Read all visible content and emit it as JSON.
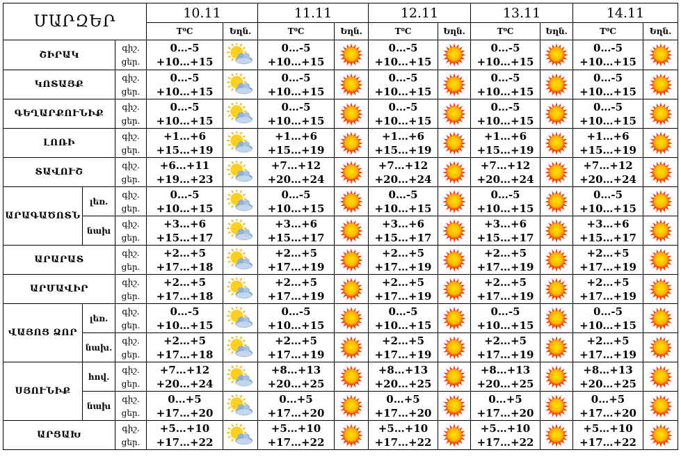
{
  "title": "ՄԱՐԶԵՐ",
  "dates": [
    "10.11",
    "11.11",
    "12.11",
    "13.11",
    "14.11"
  ],
  "sub_headers": {
    "temp": "T⁰C",
    "weather": "Եղն."
  },
  "icons": {
    "partly_cloudy": "sun-behind-cloud-icon",
    "sunny": "sun-icon"
  },
  "colors": {
    "sun_outer": "#ff2a00",
    "sun_inner": "#ffe600",
    "cloud": "#7a9cc4"
  },
  "regions": [
    {
      "name": "ՇԻՐԱԿ",
      "rows": [
        {
          "sub": "",
          "tod": [
            "գիշ.",
            "ցեր."
          ],
          "days": [
            {
              "t": [
                "0…-5",
                "+10…+15"
              ],
              "icon": "partly_cloudy"
            },
            {
              "t": [
                "0…-5",
                "+10…+15"
              ],
              "icon": "sunny"
            },
            {
              "t": [
                "0…-5",
                "+10…+15"
              ],
              "icon": "sunny"
            },
            {
              "t": [
                "0…-5",
                "+10…+15"
              ],
              "icon": "sunny"
            },
            {
              "t": [
                "0…-5",
                "+10…+15"
              ],
              "icon": "sunny"
            }
          ]
        }
      ]
    },
    {
      "name": "ԿՈՏԱՅՔ",
      "rows": [
        {
          "sub": "",
          "tod": [
            "գիշ.",
            "ցեր."
          ],
          "days": [
            {
              "t": [
                "0…-5",
                "+10…+15"
              ],
              "icon": "partly_cloudy"
            },
            {
              "t": [
                "0…-5",
                "+10…+15"
              ],
              "icon": "sunny"
            },
            {
              "t": [
                "0…-5",
                "+10…+15"
              ],
              "icon": "sunny"
            },
            {
              "t": [
                "0…-5",
                "+10…+15"
              ],
              "icon": "sunny"
            },
            {
              "t": [
                "0…-5",
                "+10…+15"
              ],
              "icon": "sunny"
            }
          ]
        }
      ]
    },
    {
      "name": "ԳԵՂԱՐՔՈՒՆԻՔ",
      "rows": [
        {
          "sub": "",
          "tod": [
            "գիշ.",
            "ցեր."
          ],
          "days": [
            {
              "t": [
                "0…-5",
                "+10…+15"
              ],
              "icon": "partly_cloudy"
            },
            {
              "t": [
                "0…-5",
                "+10…+15"
              ],
              "icon": "sunny"
            },
            {
              "t": [
                "0…-5",
                "+10…+15"
              ],
              "icon": "sunny"
            },
            {
              "t": [
                "0…-5",
                "+10…+15"
              ],
              "icon": "sunny"
            },
            {
              "t": [
                "0…-5",
                "+10…+15"
              ],
              "icon": "sunny"
            }
          ]
        }
      ]
    },
    {
      "name": "ԼՈՌԻ",
      "rows": [
        {
          "sub": "",
          "tod": [
            "գիշ.",
            "ցեր."
          ],
          "days": [
            {
              "t": [
                "+1…+6",
                "+15…+19"
              ],
              "icon": "partly_cloudy"
            },
            {
              "t": [
                "+1…+6",
                "+15…+19"
              ],
              "icon": "sunny"
            },
            {
              "t": [
                "+1…+6",
                "+15…+19"
              ],
              "icon": "sunny"
            },
            {
              "t": [
                "+1…+6",
                "+15…+19"
              ],
              "icon": "sunny"
            },
            {
              "t": [
                "+1…+6",
                "+15…+19"
              ],
              "icon": "sunny"
            }
          ]
        }
      ]
    },
    {
      "name": "ՏԱՎՈՒՇ",
      "rows": [
        {
          "sub": "",
          "tod": [
            "գիշ.",
            "ցեր."
          ],
          "days": [
            {
              "t": [
                "+6…+11",
                "+19…+23"
              ],
              "icon": "partly_cloudy"
            },
            {
              "t": [
                "+7…+12",
                "+20…+24"
              ],
              "icon": "sunny"
            },
            {
              "t": [
                "+7…+12",
                "+20…+24"
              ],
              "icon": "sunny"
            },
            {
              "t": [
                "+7…+12",
                "+20…+24"
              ],
              "icon": "sunny"
            },
            {
              "t": [
                "+7…+12",
                "+20…+24"
              ],
              "icon": "sunny"
            }
          ]
        }
      ]
    },
    {
      "name": "ԱՐԱԳԱԾՈՏՆ",
      "rows": [
        {
          "sub": "լեռ.",
          "tod": [
            "գիշ.",
            "ցեր."
          ],
          "days": [
            {
              "t": [
                "0…-5",
                "+10…+15"
              ],
              "icon": "partly_cloudy"
            },
            {
              "t": [
                "0…-5",
                "+10…+15"
              ],
              "icon": "sunny"
            },
            {
              "t": [
                "0…-5",
                "+10…+15"
              ],
              "icon": "sunny"
            },
            {
              "t": [
                "0…-5",
                "+10…+15"
              ],
              "icon": "sunny"
            },
            {
              "t": [
                "0…-5",
                "+10…+15"
              ],
              "icon": "sunny"
            }
          ]
        },
        {
          "sub": "նախ",
          "tod": [
            "գիշ.",
            "ցեր."
          ],
          "days": [
            {
              "t": [
                "+3…+6",
                "+15…+17"
              ],
              "icon": "partly_cloudy"
            },
            {
              "t": [
                "+3…+6",
                "+15…+17"
              ],
              "icon": "sunny"
            },
            {
              "t": [
                "+3…+6",
                "+15…+17"
              ],
              "icon": "sunny"
            },
            {
              "t": [
                "+3…+6",
                "+15…+17"
              ],
              "icon": "sunny"
            },
            {
              "t": [
                "+3…+6",
                "+15…+17"
              ],
              "icon": "sunny"
            }
          ]
        }
      ]
    },
    {
      "name": "ԱՐԱՐԱՏ",
      "rows": [
        {
          "sub": "",
          "tod": [
            "գիշ.",
            "ցեր."
          ],
          "days": [
            {
              "t": [
                "+2…+5",
                "+17…+18"
              ],
              "icon": "partly_cloudy"
            },
            {
              "t": [
                "+2…+5",
                "+17…+19"
              ],
              "icon": "sunny"
            },
            {
              "t": [
                "+2…+5",
                "+17…+19"
              ],
              "icon": "sunny"
            },
            {
              "t": [
                "+2…+5",
                "+17…+19"
              ],
              "icon": "sunny"
            },
            {
              "t": [
                "+2…+5",
                "+17…+19"
              ],
              "icon": "sunny"
            }
          ]
        }
      ]
    },
    {
      "name": "ԱՐՄԱՎԻՐ",
      "rows": [
        {
          "sub": "",
          "tod": [
            "գիշ.",
            "ցեր."
          ],
          "days": [
            {
              "t": [
                "+2…+5",
                "+17…+18"
              ],
              "icon": "partly_cloudy"
            },
            {
              "t": [
                "+2…+5",
                "+17…+19"
              ],
              "icon": "sunny"
            },
            {
              "t": [
                "+2…+5",
                "+17…+19"
              ],
              "icon": "sunny"
            },
            {
              "t": [
                "+2…+5",
                "+17…+19"
              ],
              "icon": "sunny"
            },
            {
              "t": [
                "+2…+5",
                "+17…+19"
              ],
              "icon": "sunny"
            }
          ]
        }
      ]
    },
    {
      "name": "ՎԱՅՈՑ ՁՈՐ",
      "rows": [
        {
          "sub": "լեռ.",
          "tod": [
            "գիշ.",
            "ցեր."
          ],
          "days": [
            {
              "t": [
                "0…-5",
                "+10…+15"
              ],
              "icon": "partly_cloudy"
            },
            {
              "t": [
                "0…-5",
                "+10…+15"
              ],
              "icon": "sunny"
            },
            {
              "t": [
                "0…-5",
                "+10…+15"
              ],
              "icon": "sunny"
            },
            {
              "t": [
                "0…-5",
                "+10…+15"
              ],
              "icon": "sunny"
            },
            {
              "t": [
                "0…-5",
                "+10…+15"
              ],
              "icon": "sunny"
            }
          ]
        },
        {
          "sub": "նախ.",
          "tod": [
            "գիշ.",
            "ցեր."
          ],
          "days": [
            {
              "t": [
                "+2…+5",
                "+17…+18"
              ],
              "icon": "partly_cloudy"
            },
            {
              "t": [
                "+2…+5",
                "+17…+19"
              ],
              "icon": "sunny"
            },
            {
              "t": [
                "+2…+5",
                "+17…+19"
              ],
              "icon": "sunny"
            },
            {
              "t": [
                "+2…+5",
                "+17…+19"
              ],
              "icon": "sunny"
            },
            {
              "t": [
                "+2…+5",
                "+17…+19"
              ],
              "icon": "sunny"
            }
          ]
        }
      ]
    },
    {
      "name": "ՍՅՈՒՆԻՔ",
      "rows": [
        {
          "sub": "հով.",
          "tod": [
            "գիշ.",
            "ցեր."
          ],
          "days": [
            {
              "t": [
                "+7…+12",
                "+20…+24"
              ],
              "icon": "partly_cloudy"
            },
            {
              "t": [
                "+8…+13",
                "+20…+25"
              ],
              "icon": "sunny"
            },
            {
              "t": [
                "+8…+13",
                "+20…+25"
              ],
              "icon": "sunny"
            },
            {
              "t": [
                "+8…+13",
                "+20…+25"
              ],
              "icon": "sunny"
            },
            {
              "t": [
                "+8…+13",
                "+20…+25"
              ],
              "icon": "sunny"
            }
          ]
        },
        {
          "sub": "նախ",
          "tod": [
            "գիշ.",
            "ցեր."
          ],
          "days": [
            {
              "t": [
                "0…+5",
                "+17…+20"
              ],
              "icon": "partly_cloudy"
            },
            {
              "t": [
                "0…+5",
                "+17…+20"
              ],
              "icon": "sunny"
            },
            {
              "t": [
                "0…+5",
                "+17…+20"
              ],
              "icon": "sunny"
            },
            {
              "t": [
                "0…+5",
                "+17…+20"
              ],
              "icon": "sunny"
            },
            {
              "t": [
                "0…+5",
                "+17…+20"
              ],
              "icon": "sunny"
            }
          ]
        }
      ]
    },
    {
      "name": "ԱՐՑԱԽ",
      "rows": [
        {
          "sub": "",
          "tod": [
            "գիշ.",
            "ցեր."
          ],
          "days": [
            {
              "t": [
                "+5…+10",
                "+17…+22"
              ],
              "icon": "partly_cloudy"
            },
            {
              "t": [
                "+5…+10",
                "+17…+22"
              ],
              "icon": "sunny"
            },
            {
              "t": [
                "+5…+10",
                "+17…+22"
              ],
              "icon": "sunny"
            },
            {
              "t": [
                "+5…+10",
                "+17…+22"
              ],
              "icon": "sunny"
            },
            {
              "t": [
                "+5…+10",
                "+17…+22"
              ],
              "icon": "sunny"
            }
          ]
        }
      ]
    }
  ]
}
